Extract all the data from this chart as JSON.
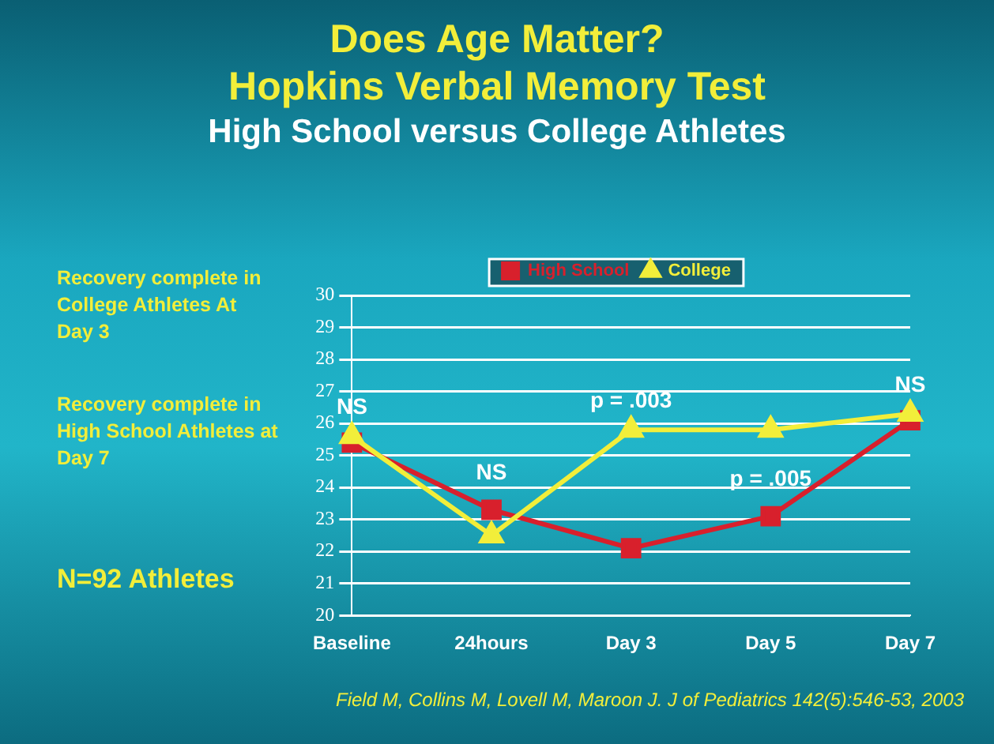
{
  "chart_data": {
    "type": "line",
    "title": "Does Age Matter?\nHopkins Verbal Memory Test",
    "subtitle": "High School versus College Athletes",
    "categories": [
      "Baseline",
      "24hours",
      "Day 3",
      "Day 5",
      "Day 7"
    ],
    "series": [
      {
        "name": "High School",
        "color": "#d8202c",
        "marker": "square",
        "values": [
          25.4,
          23.3,
          22.1,
          23.1,
          26.1
        ]
      },
      {
        "name": "College",
        "color": "#f2ee3a",
        "marker": "triangle",
        "values": [
          25.6,
          22.5,
          25.8,
          25.8,
          26.3
        ]
      }
    ],
    "ylim": [
      20,
      30
    ],
    "yticks": [
      20,
      21,
      22,
      23,
      24,
      25,
      26,
      27,
      28,
      29,
      30
    ],
    "grid": "y",
    "legend": "top",
    "annotations": [
      {
        "text": "NS",
        "x": "Baseline",
        "y": 25.6
      },
      {
        "text": "NS",
        "x": "24hours",
        "y": 23.3
      },
      {
        "text": "p = .003",
        "x": "Day 3",
        "y": 25.8
      },
      {
        "text": "p = .005",
        "x": "Day 5",
        "y": 23.1
      },
      {
        "text": "NS",
        "x": "Day 7",
        "y": 26.3
      },
      "Recovery complete in College Athletes At Day 3",
      "Recovery complete in High School Athletes at Day 7",
      "N=92 Athletes",
      "Field M, Collins M, Lovell M, Maroon J. J of Pediatrics 142(5):546-53, 2003"
    ]
  }
}
